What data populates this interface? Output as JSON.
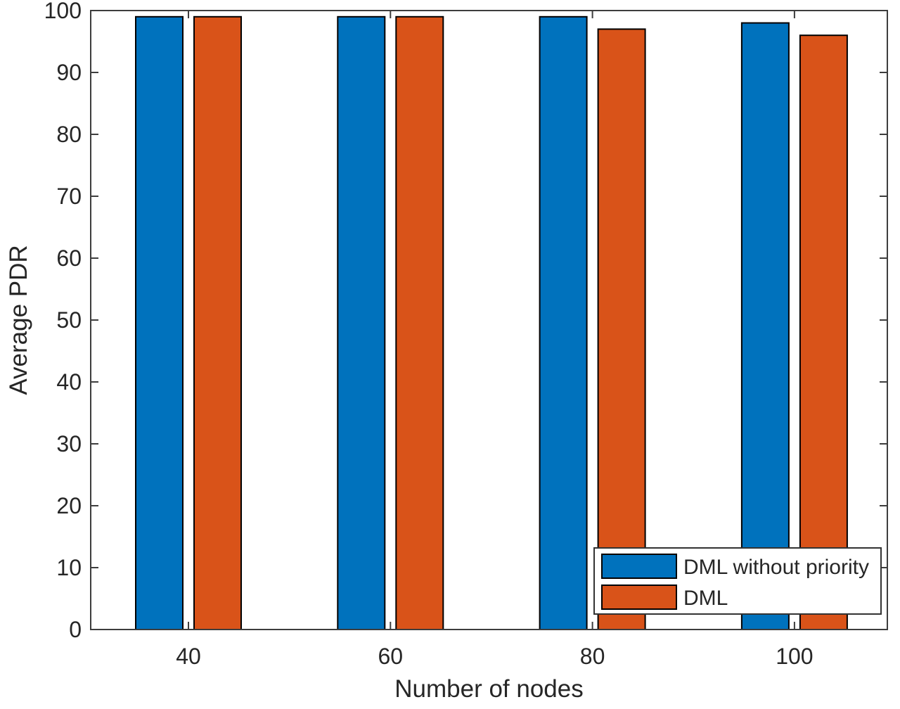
{
  "figure": {
    "background_color": "#ffffff"
  },
  "chart_data": {
    "type": "bar",
    "categories": [
      "40",
      "60",
      "80",
      "100"
    ],
    "series": [
      {
        "name": "DML without priority",
        "color": "#0072BD",
        "values": [
          99,
          99,
          99,
          98
        ]
      },
      {
        "name": "DML",
        "color": "#D95319",
        "values": [
          99,
          99,
          97,
          96
        ]
      }
    ],
    "title": "",
    "xlabel": "Number of nodes",
    "ylabel": "Average PDR",
    "ylim": [
      0,
      100
    ],
    "ytick_step": 10,
    "ytick_labels": [
      "0",
      "10",
      "20",
      "30",
      "40",
      "50",
      "60",
      "70",
      "80",
      "90",
      "100"
    ],
    "grid": false,
    "box": true,
    "tick_direction": "in",
    "legend": {
      "position": "bottom-right",
      "entries": [
        "DML without priority",
        "DML"
      ],
      "border_color": "#333333",
      "background_color": "#ffffff"
    },
    "bar_edge_color": "#000000",
    "axis_color": "#3d3d3d",
    "label_color": "#262626"
  }
}
